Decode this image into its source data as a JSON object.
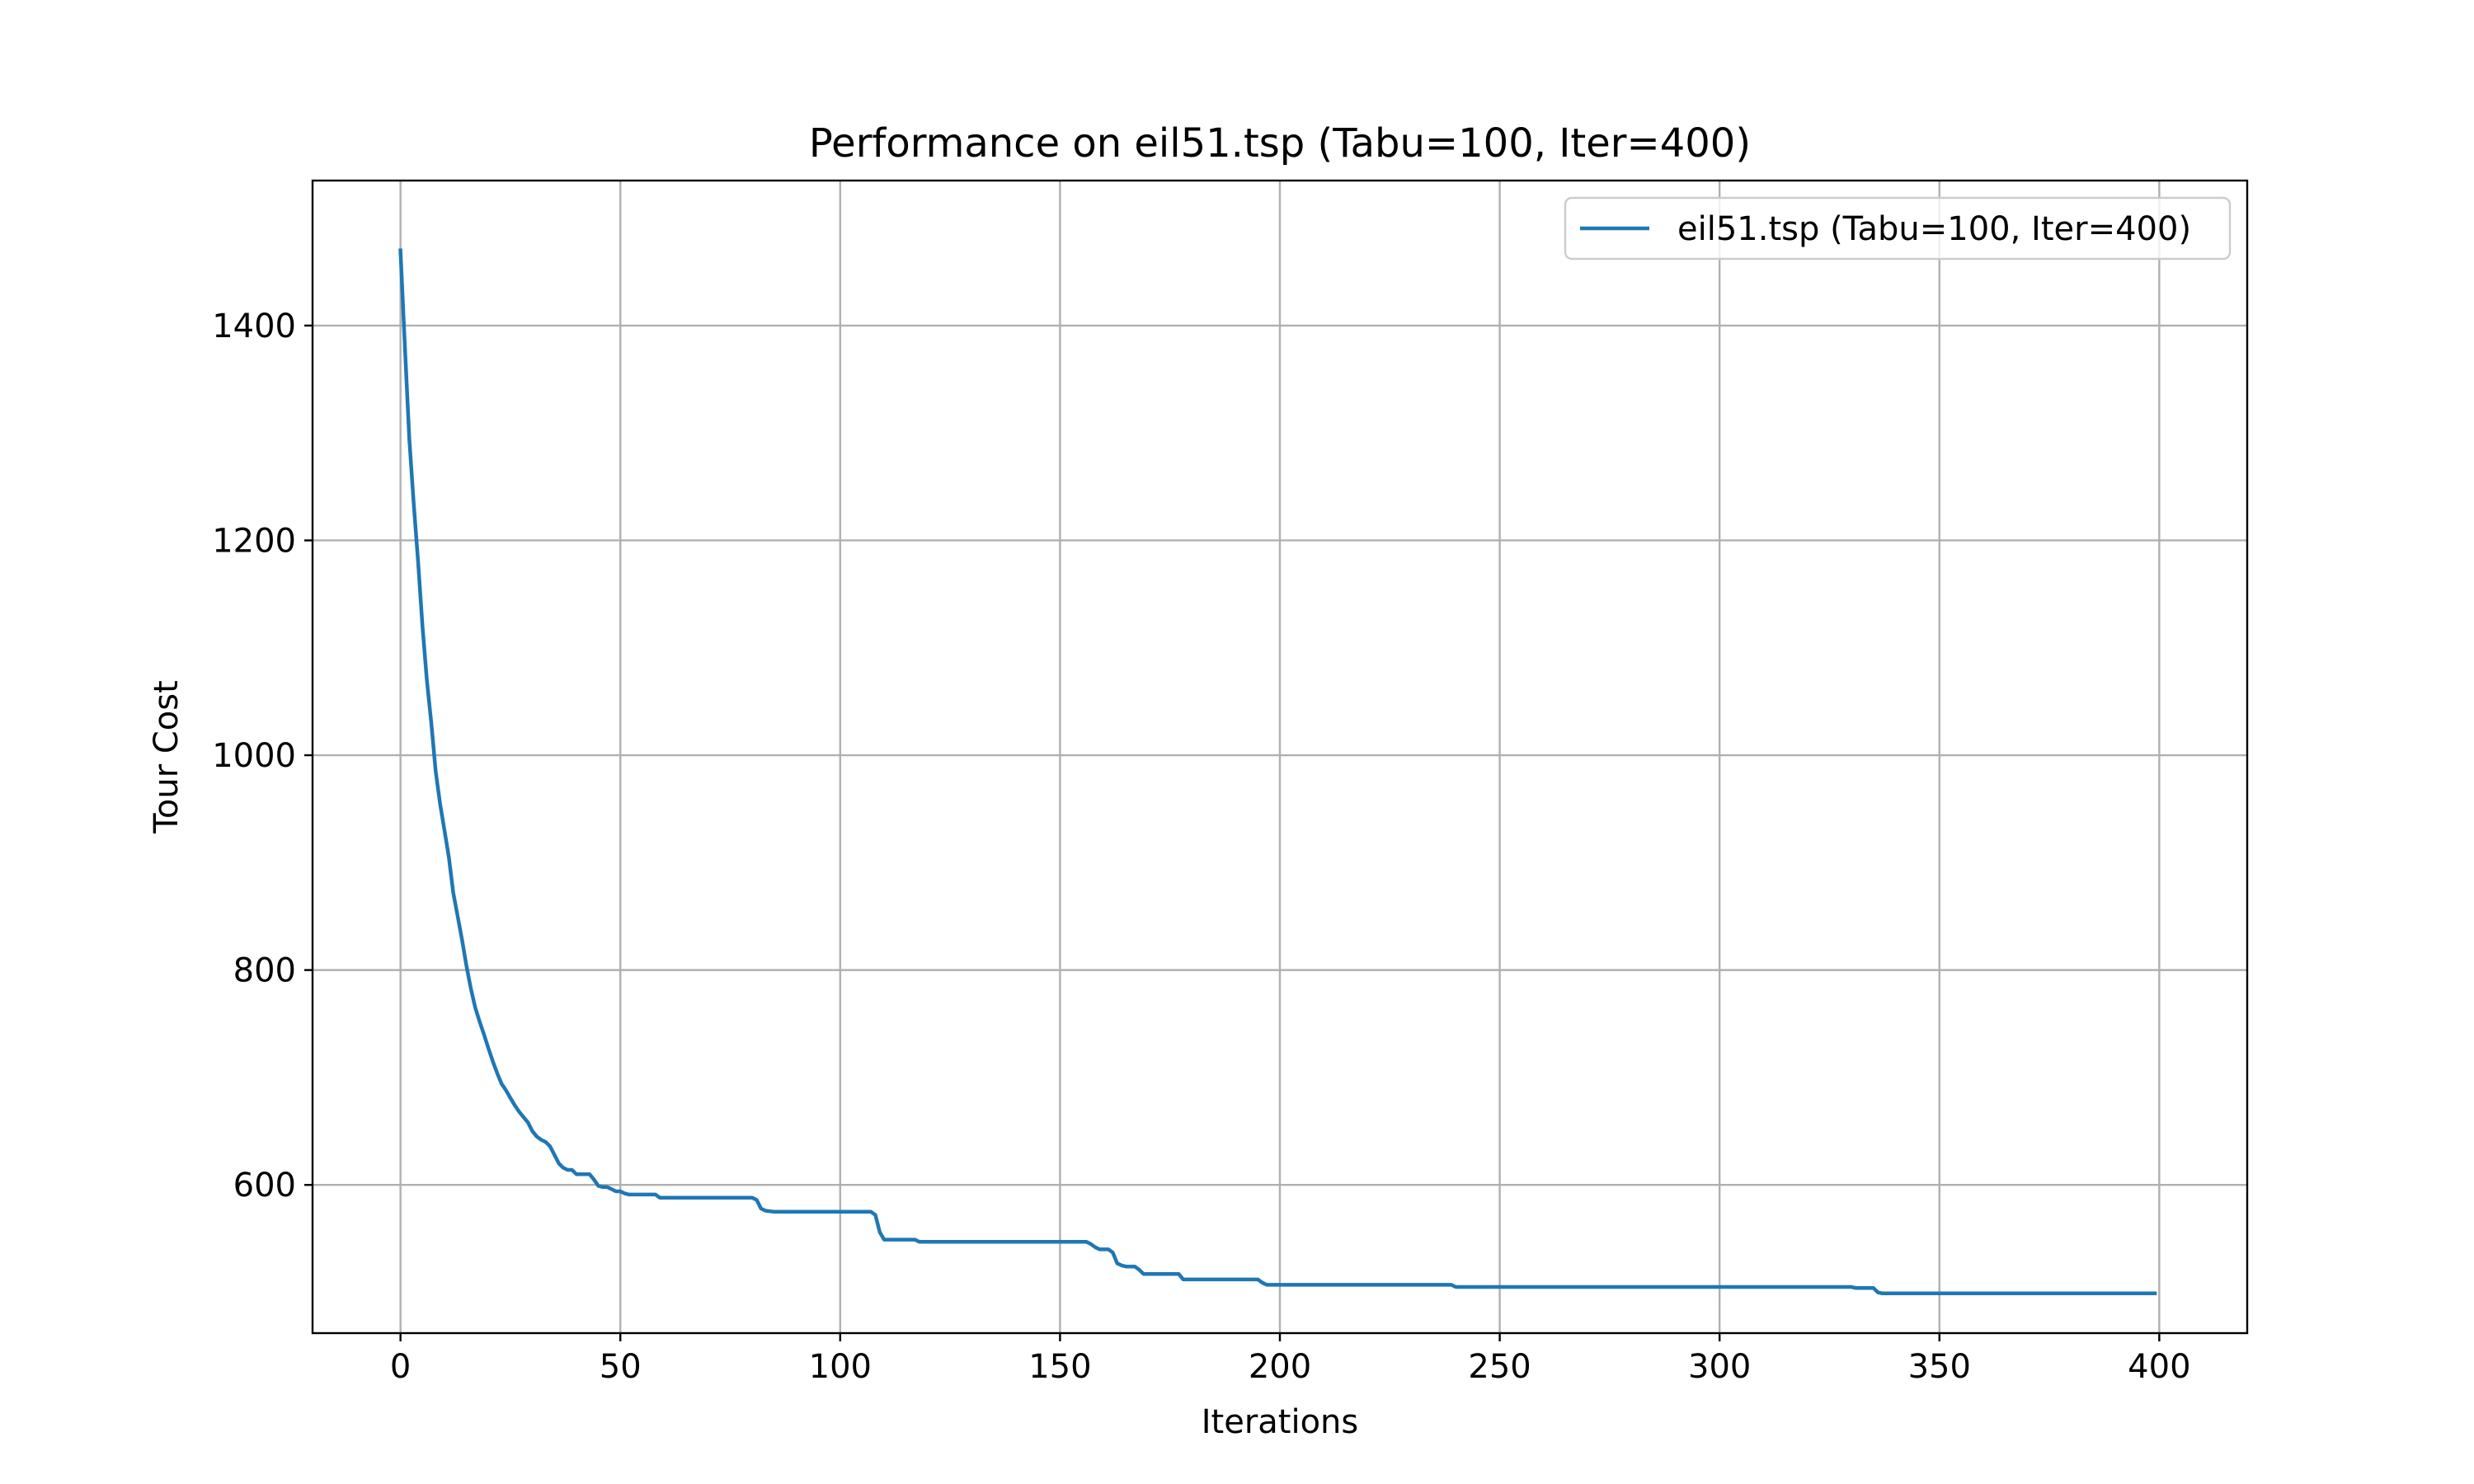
{
  "chart_data": {
    "type": "line",
    "title": "Performance on eil51.tsp (Tabu=100, Iter=400)",
    "xlabel": "Iterations",
    "ylabel": "Tour Cost",
    "xlim": [
      -20,
      420
    ],
    "ylim": [
      462,
      1535
    ],
    "grid": true,
    "legend_location": "top-right",
    "x_ticks": [
      0,
      50,
      100,
      150,
      200,
      250,
      300,
      350,
      400
    ],
    "y_ticks": [
      600,
      800,
      1000,
      1200,
      1400
    ],
    "series": [
      {
        "name": "eil51.tsp (Tabu=100, Iter=400)",
        "color": "#1f77b4",
        "x": [
          0,
          1,
          2,
          3,
          4,
          5,
          6,
          7,
          8,
          9,
          10,
          11,
          12,
          13,
          14,
          15,
          16,
          17,
          18,
          19,
          20,
          21,
          22,
          23,
          24,
          25,
          26,
          27,
          28,
          29,
          30,
          31,
          32,
          33,
          34,
          35,
          36,
          37,
          38,
          39,
          40,
          41,
          42,
          43,
          44,
          45,
          46,
          47,
          48,
          49,
          50,
          51,
          52,
          53,
          55,
          57,
          58,
          59,
          60,
          65,
          70,
          75,
          80,
          81,
          82,
          83,
          85,
          90,
          95,
          100,
          105,
          107,
          108,
          109,
          110,
          112,
          115,
          117,
          118,
          120,
          130,
          140,
          150,
          155,
          156,
          157,
          158,
          159,
          161,
          162,
          163,
          164,
          165,
          167,
          168,
          169,
          170,
          172,
          175,
          177,
          178,
          180,
          185,
          190,
          195,
          196,
          197,
          200,
          210,
          220,
          230,
          239,
          240,
          245,
          250,
          260,
          270,
          280,
          290,
          300,
          310,
          320,
          330,
          331,
          332,
          335,
          336,
          337,
          340,
          350,
          360,
          370,
          380,
          390,
          399
        ],
        "y": [
          1470,
          1380,
          1295,
          1235,
          1180,
          1120,
          1070,
          1030,
          985,
          955,
          930,
          905,
          872,
          850,
          828,
          804,
          783,
          765,
          752,
          740,
          727,
          715,
          704,
          694,
          688,
          681,
          674,
          668,
          663,
          658,
          650,
          645,
          642,
          640,
          636,
          628,
          620,
          616,
          614,
          614,
          610,
          610,
          610,
          610,
          605,
          599,
          598,
          598,
          596,
          594,
          594,
          592,
          591,
          591,
          591,
          591,
          591,
          588,
          588,
          588,
          588,
          588,
          588,
          586,
          578,
          576,
          575,
          575,
          575,
          575,
          575,
          575,
          572,
          556,
          549,
          549,
          549,
          549,
          547,
          547,
          547,
          547,
          547,
          547,
          547,
          545,
          542,
          540,
          540,
          537,
          527,
          525,
          524,
          524,
          521,
          517,
          517,
          517,
          517,
          517,
          512,
          512,
          512,
          512,
          512,
          509,
          507,
          507,
          507,
          507,
          507,
          507,
          505,
          505,
          505,
          505,
          505,
          505,
          505,
          505,
          505,
          505,
          505,
          504,
          504,
          504,
          500,
          499,
          499,
          499,
          499,
          499,
          499,
          499,
          499
        ]
      }
    ]
  }
}
